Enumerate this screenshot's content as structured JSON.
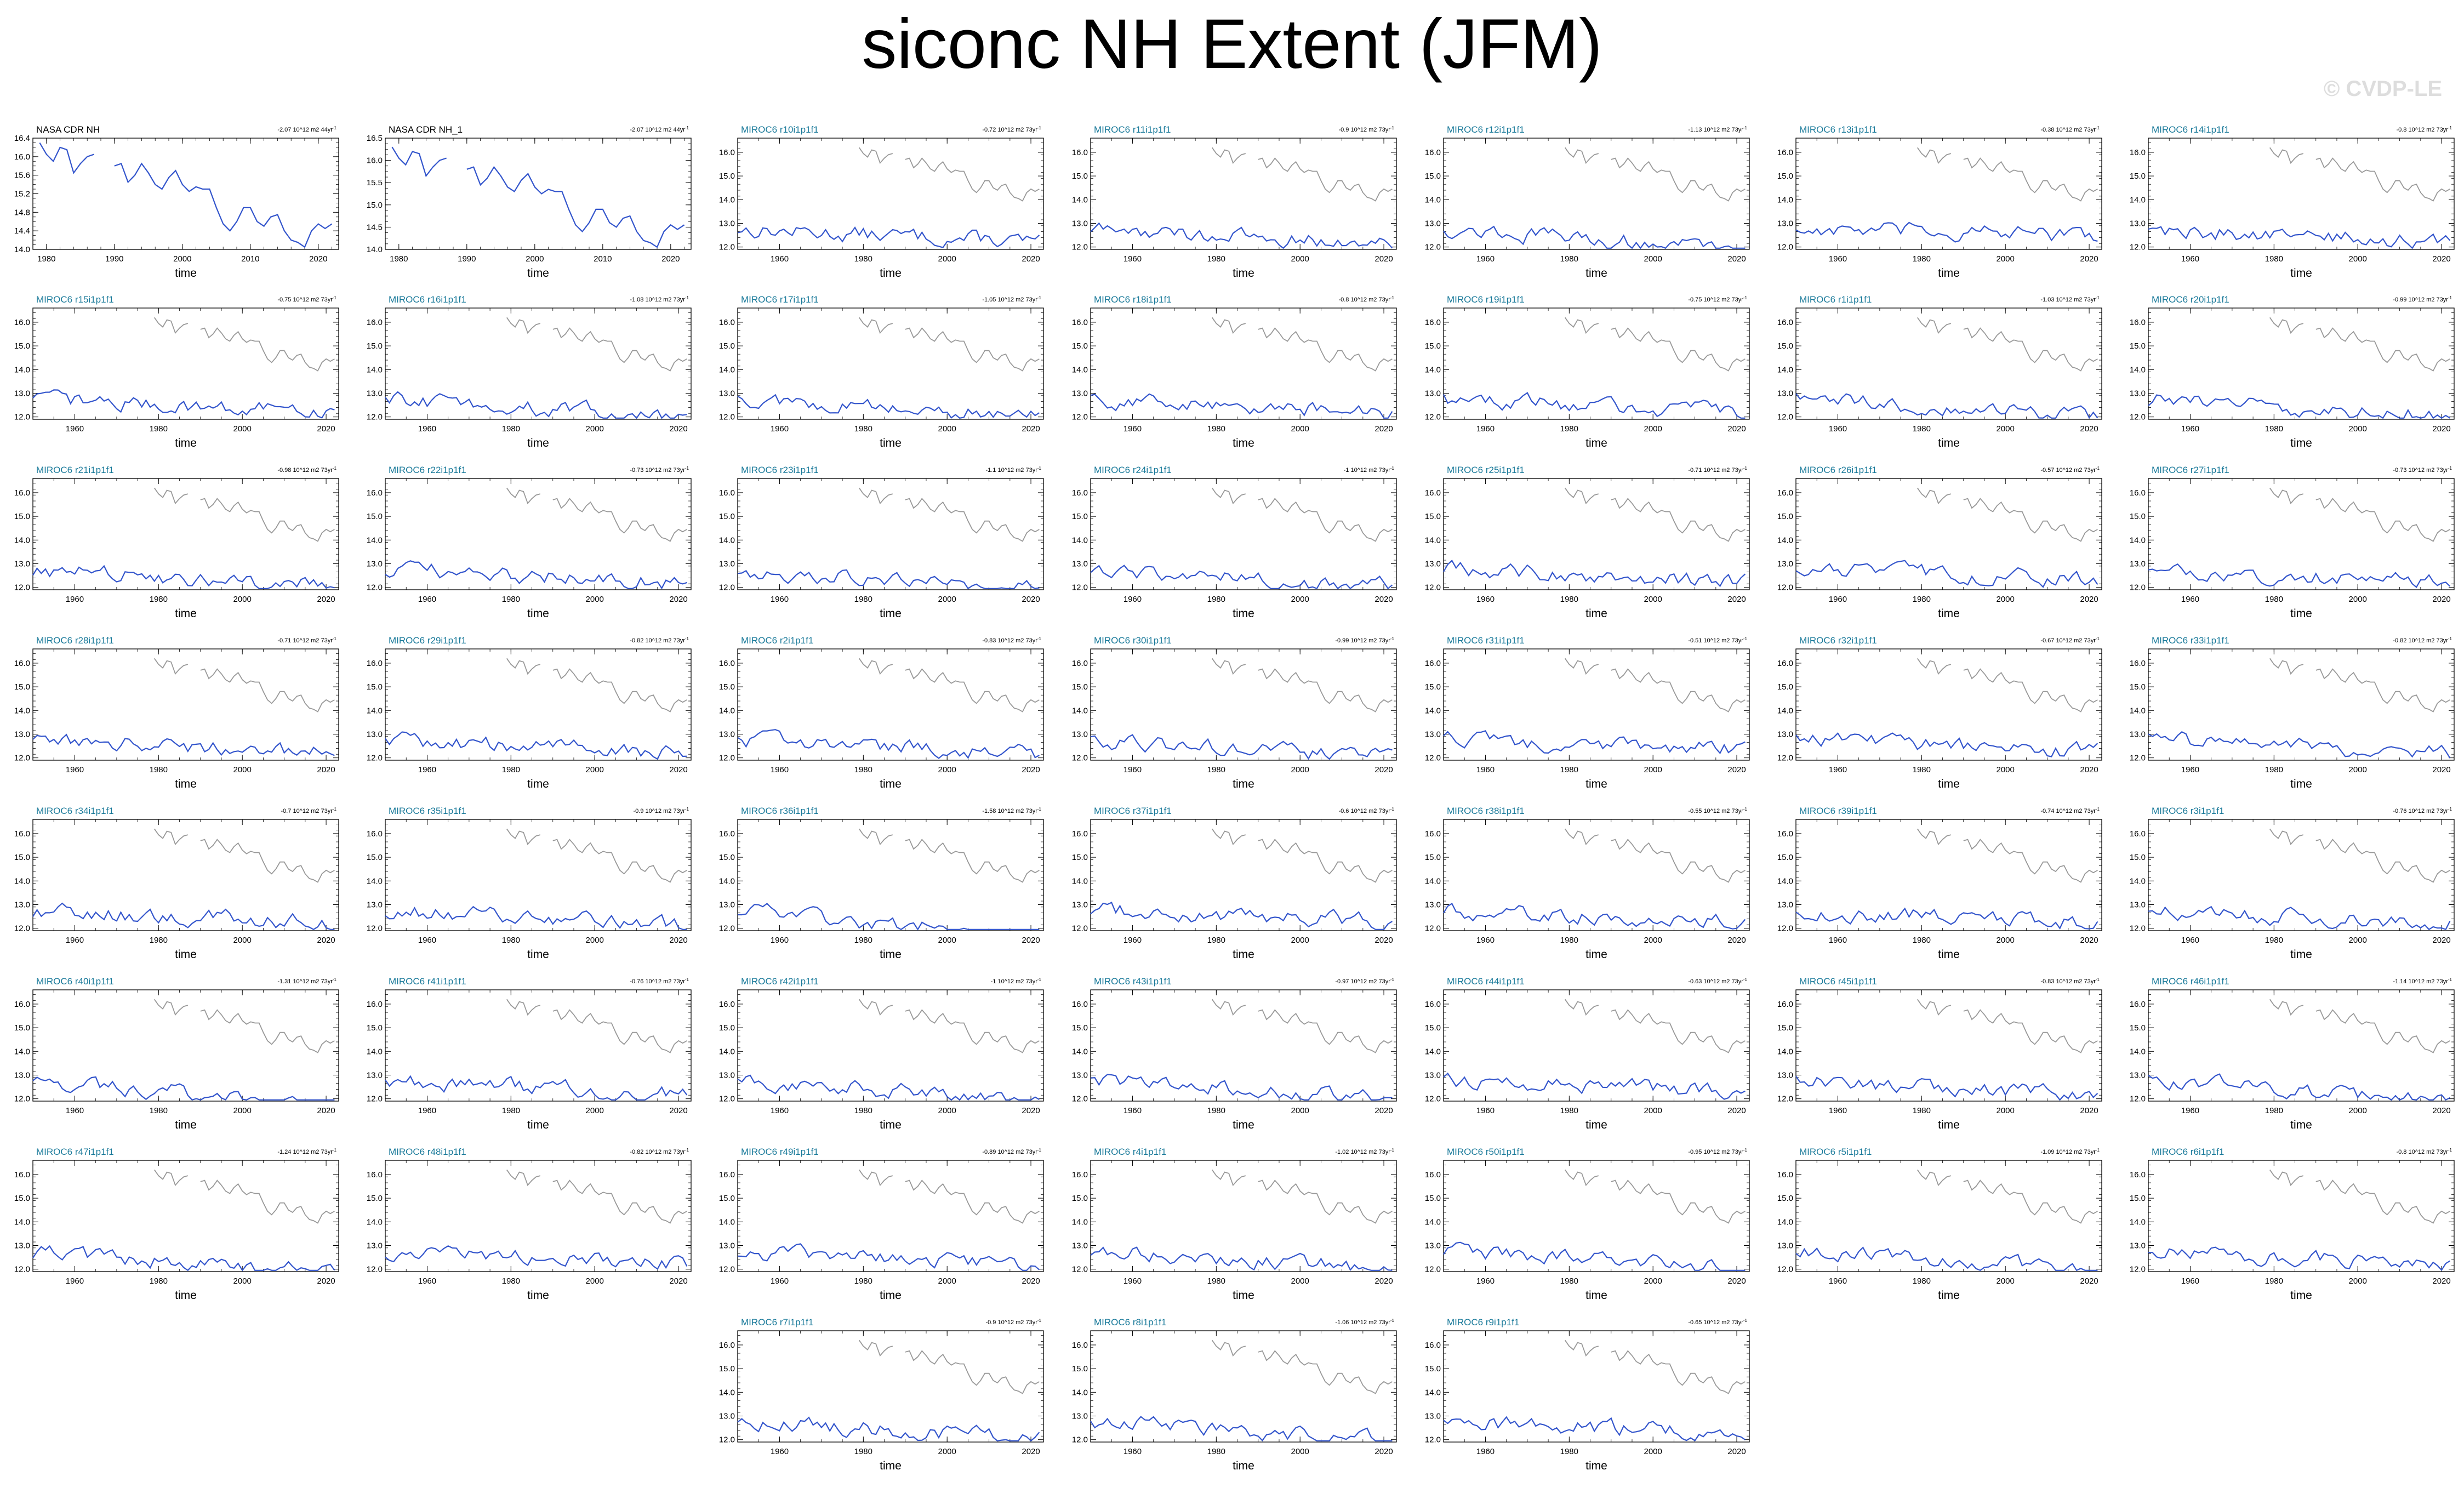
{
  "figure": {
    "title": "siconc NH Extent (JFM)",
    "watermark": "© CVDP-LE"
  },
  "chart_data": {
    "type": "line",
    "xlabel": "time",
    "trend_unit": "10^12 m2",
    "obs_panels": [
      {
        "label": "NASA CDR NH",
        "trend": "-2.07",
        "years": "44",
        "xlim": [
          1978,
          2023
        ],
        "ylim": [
          14.0,
          16.4
        ],
        "yticks": [
          14.0,
          14.4,
          14.8,
          15.2,
          15.6,
          16.0,
          16.4
        ],
        "xticks": [
          1980,
          1990,
          2000,
          2010,
          2020
        ]
      },
      {
        "label": "NASA CDR NH_1",
        "trend": "-2.07",
        "years": "44",
        "xlim": [
          1978,
          2023
        ],
        "ylim": [
          14.0,
          16.5
        ],
        "yticks": [
          14.0,
          14.5,
          15.0,
          15.5,
          16.0,
          16.5
        ],
        "xticks": [
          1980,
          1990,
          2000,
          2010,
          2020
        ]
      }
    ],
    "model_axis": {
      "xlim": [
        1950,
        2023
      ],
      "ylim": [
        11.9,
        16.6
      ],
      "yticks": [
        12.0,
        13.0,
        14.0,
        15.0,
        16.0
      ],
      "xticks": [
        1960,
        1980,
        2000,
        2020
      ]
    },
    "obs_series": {
      "x": [
        1979,
        1980,
        1981,
        1982,
        1983,
        1984,
        1985,
        1986,
        1987,
        1988,
        1989,
        1990,
        1991,
        1992,
        1993,
        1994,
        1995,
        1996,
        1997,
        1998,
        1999,
        2000,
        2001,
        2002,
        2003,
        2004,
        2005,
        2006,
        2007,
        2008,
        2009,
        2010,
        2011,
        2012,
        2013,
        2014,
        2015,
        2016,
        2017,
        2018,
        2019,
        2020,
        2021,
        2022
      ],
      "y": [
        16.3,
        16.05,
        15.9,
        16.2,
        16.15,
        15.65,
        15.85,
        16.0,
        16.05,
        null,
        null,
        15.8,
        15.85,
        15.45,
        15.6,
        15.85,
        15.65,
        15.4,
        15.3,
        15.55,
        15.7,
        15.4,
        15.25,
        15.35,
        15.3,
        15.3,
        14.9,
        14.55,
        14.4,
        14.6,
        14.9,
        14.9,
        14.6,
        14.5,
        14.7,
        14.75,
        14.4,
        14.2,
        14.15,
        14.05,
        14.4,
        14.55,
        14.45,
        14.55
      ]
    },
    "model_panels": [
      {
        "label": "MIROC6 r10i1p1f1",
        "trend": "-0.72",
        "years": "73"
      },
      {
        "label": "MIROC6 r11i1p1f1",
        "trend": "-0.9",
        "years": "73"
      },
      {
        "label": "MIROC6 r12i1p1f1",
        "trend": "-1.13",
        "years": "73"
      },
      {
        "label": "MIROC6 r13i1p1f1",
        "trend": "-0.38",
        "years": "73"
      },
      {
        "label": "MIROC6 r14i1p1f1",
        "trend": "-0.8",
        "years": "73"
      },
      {
        "label": "MIROC6 r15i1p1f1",
        "trend": "-0.75",
        "years": "73"
      },
      {
        "label": "MIROC6 r16i1p1f1",
        "trend": "-1.08",
        "years": "73"
      },
      {
        "label": "MIROC6 r17i1p1f1",
        "trend": "-1.05",
        "years": "73"
      },
      {
        "label": "MIROC6 r18i1p1f1",
        "trend": "-0.8",
        "years": "73"
      },
      {
        "label": "MIROC6 r19i1p1f1",
        "trend": "-0.75",
        "years": "73"
      },
      {
        "label": "MIROC6 r1i1p1f1",
        "trend": "-1.03",
        "years": "73"
      },
      {
        "label": "MIROC6 r20i1p1f1",
        "trend": "-0.99",
        "years": "73"
      },
      {
        "label": "MIROC6 r21i1p1f1",
        "trend": "-0.98",
        "years": "73"
      },
      {
        "label": "MIROC6 r22i1p1f1",
        "trend": "-0.73",
        "years": "73"
      },
      {
        "label": "MIROC6 r23i1p1f1",
        "trend": "-1.1",
        "years": "73"
      },
      {
        "label": "MIROC6 r24i1p1f1",
        "trend": "-1",
        "years": "73"
      },
      {
        "label": "MIROC6 r25i1p1f1",
        "trend": "-0.71",
        "years": "73"
      },
      {
        "label": "MIROC6 r26i1p1f1",
        "trend": "-0.57",
        "years": "73"
      },
      {
        "label": "MIROC6 r27i1p1f1",
        "trend": "-0.73",
        "years": "73"
      },
      {
        "label": "MIROC6 r28i1p1f1",
        "trend": "-0.71",
        "years": "73"
      },
      {
        "label": "MIROC6 r29i1p1f1",
        "trend": "-0.82",
        "years": "73"
      },
      {
        "label": "MIROC6 r2i1p1f1",
        "trend": "-0.83",
        "years": "73"
      },
      {
        "label": "MIROC6 r30i1p1f1",
        "trend": "-0.99",
        "years": "73"
      },
      {
        "label": "MIROC6 r31i1p1f1",
        "trend": "-0.51",
        "years": "73"
      },
      {
        "label": "MIROC6 r32i1p1f1",
        "trend": "-0.67",
        "years": "73"
      },
      {
        "label": "MIROC6 r33i1p1f1",
        "trend": "-0.82",
        "years": "73"
      },
      {
        "label": "MIROC6 r34i1p1f1",
        "trend": "-0.7",
        "years": "73"
      },
      {
        "label": "MIROC6 r35i1p1f1",
        "trend": "-0.9",
        "years": "73"
      },
      {
        "label": "MIROC6 r36i1p1f1",
        "trend": "-1.58",
        "years": "73"
      },
      {
        "label": "MIROC6 r37i1p1f1",
        "trend": "-0.6",
        "years": "73"
      },
      {
        "label": "MIROC6 r38i1p1f1",
        "trend": "-0.55",
        "years": "73"
      },
      {
        "label": "MIROC6 r39i1p1f1",
        "trend": "-0.74",
        "years": "73"
      },
      {
        "label": "MIROC6 r3i1p1f1",
        "trend": "-0.76",
        "years": "73"
      },
      {
        "label": "MIROC6 r40i1p1f1",
        "trend": "-1.31",
        "years": "73"
      },
      {
        "label": "MIROC6 r41i1p1f1",
        "trend": "-0.76",
        "years": "73"
      },
      {
        "label": "MIROC6 r42i1p1f1",
        "trend": "-1",
        "years": "73"
      },
      {
        "label": "MIROC6 r43i1p1f1",
        "trend": "-0.97",
        "years": "73"
      },
      {
        "label": "MIROC6 r44i1p1f1",
        "trend": "-0.63",
        "years": "73"
      },
      {
        "label": "MIROC6 r45i1p1f1",
        "trend": "-0.83",
        "years": "73"
      },
      {
        "label": "MIROC6 r46i1p1f1",
        "trend": "-1.14",
        "years": "73"
      },
      {
        "label": "MIROC6 r47i1p1f1",
        "trend": "-1.24",
        "years": "73"
      },
      {
        "label": "MIROC6 r48i1p1f1",
        "trend": "-0.82",
        "years": "73"
      },
      {
        "label": "MIROC6 r49i1p1f1",
        "trend": "-0.89",
        "years": "73"
      },
      {
        "label": "MIROC6 r4i1p1f1",
        "trend": "-1.02",
        "years": "73"
      },
      {
        "label": "MIROC6 r50i1p1f1",
        "trend": "-0.95",
        "years": "73"
      },
      {
        "label": "MIROC6 r5i1p1f1",
        "trend": "-1.09",
        "years": "73"
      },
      {
        "label": "MIROC6 r6i1p1f1",
        "trend": "-0.8",
        "years": "73"
      },
      {
        "label": "MIROC6 r7i1p1f1",
        "trend": "-0.9",
        "years": "73"
      },
      {
        "label": "MIROC6 r8i1p1f1",
        "trend": "-1.06",
        "years": "73"
      },
      {
        "label": "MIROC6 r9i1p1f1",
        "trend": "-0.65",
        "years": "73"
      }
    ],
    "colors": {
      "model_line": "#3355cc",
      "obs_line": "#3355cc",
      "obs_overlay": "#999999",
      "model_label": "#1a7a9a",
      "obs_label": "#000000"
    }
  }
}
